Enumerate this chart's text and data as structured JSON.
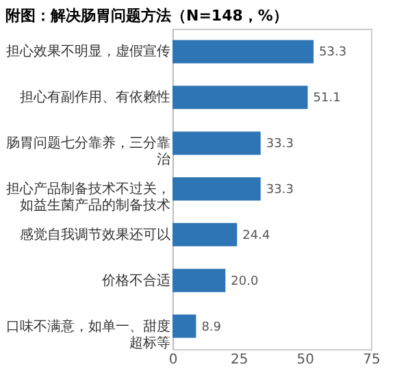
{
  "chart_data": {
    "type": "bar",
    "orientation": "horizontal",
    "title": "附图：解决肠胃问题方法（N=148，%）",
    "categories": [
      "担心效果不明显，虚假宣传",
      "担心有副作用、有依赖性",
      "肠胃问题七分靠养，三分靠治",
      "担心产品制备技术不过关，如益生菌产品的制备技术",
      "感觉自我调节效果还可以",
      "价格不合适",
      "口味不满意，如单一、甜度超标等"
    ],
    "values": [
      53.3,
      51.1,
      33.3,
      33.3,
      24.4,
      20.0,
      8.9
    ],
    "color": "#2e75b6",
    "value_labels": [
      "53.3",
      "51.1",
      "33.3",
      "33.3",
      "24.4",
      "20.0",
      "8.9"
    ],
    "xlim": [
      0,
      75
    ],
    "xticks": [
      0,
      25,
      50,
      75
    ],
    "grid": false
  }
}
